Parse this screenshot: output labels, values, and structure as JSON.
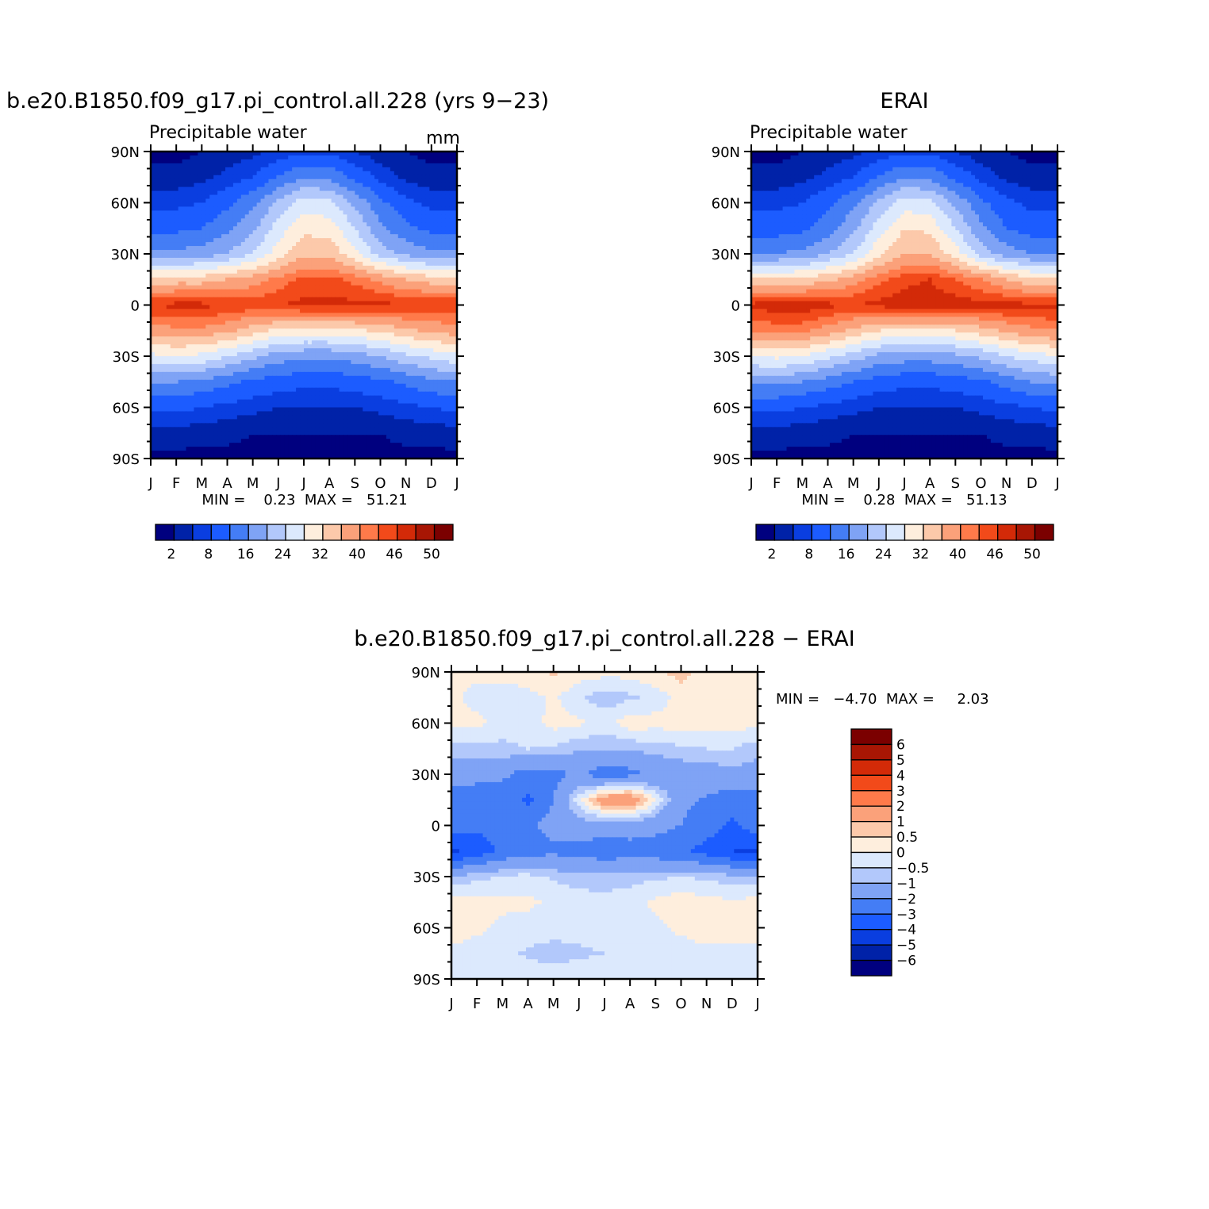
{
  "panels": [
    {
      "title": "b.e20.B1850.f09_g17.pi_control.all.228 (yrs 9−23)",
      "subtitle": "Precipitable water",
      "units": "mm",
      "stats_text": "MIN =    0.23  MAX =   51.21",
      "colorbar_ticks": [
        "2",
        "8",
        "16",
        "24",
        "32",
        "40",
        "46",
        "50"
      ]
    },
    {
      "title": "ERAI",
      "subtitle": "Precipitable water",
      "units": "",
      "stats_text": "MIN =    0.28  MAX =   51.13",
      "colorbar_ticks": [
        "2",
        "8",
        "16",
        "24",
        "32",
        "40",
        "46",
        "50"
      ]
    },
    {
      "title": "b.e20.B1850.f09_g17.pi_control.all.228 − ERAI",
      "subtitle": "",
      "units": "",
      "stats_text": "MIN =   −4.70  MAX =     2.03",
      "colorbar_ticks": [
        "6",
        "5",
        "4",
        "3",
        "2",
        "1",
        "0.5",
        "0",
        "−0.5",
        "−1",
        "−2",
        "−3",
        "−4",
        "−5",
        "−6"
      ]
    }
  ],
  "lat_tick_labels": [
    "90N",
    "60N",
    "30N",
    "0",
    "30S",
    "60S",
    "90S"
  ],
  "month_tick_labels": [
    "J",
    "F",
    "M",
    "A",
    "M",
    "J",
    "J",
    "A",
    "S",
    "O",
    "N",
    "D",
    "J"
  ],
  "colors": {
    "field_palette": [
      "#00007f",
      "#0022a8",
      "#0a3ee0",
      "#1c5cff",
      "#447df5",
      "#7fa3f5",
      "#b2c8fb",
      "#dce9fd",
      "#feeedd",
      "#fcc9aa",
      "#fba17a",
      "#ff7a4a",
      "#f24a1a",
      "#d32a08",
      "#a81604",
      "#7b0000"
    ],
    "diff_palette": [
      "#7b0000",
      "#a81604",
      "#d32a08",
      "#f24a1a",
      "#ff7a4a",
      "#fba17a",
      "#fcc9aa",
      "#feeedd",
      "#dce9fd",
      "#b2c8fb",
      "#7fa3f5",
      "#447df5",
      "#1c5cff",
      "#0a3ee0",
      "#0022a8",
      "#00007f"
    ]
  },
  "chart_data": [
    {
      "type": "heatmap",
      "title": "b.e20.B1850.f09_g17.pi_control.all.228 (yrs 9−23)",
      "subtitle": "Precipitable water",
      "units": "mm",
      "x_labels": [
        "J",
        "F",
        "M",
        "A",
        "M",
        "J",
        "J",
        "A",
        "S",
        "O",
        "N",
        "D",
        "J"
      ],
      "y_labels": [
        "90N",
        "60N",
        "30N",
        "0",
        "30S",
        "60S",
        "90S"
      ],
      "y_values": [
        90,
        60,
        30,
        0,
        -30,
        -60,
        -90
      ],
      "contour_levels": [
        2,
        5,
        8,
        12,
        16,
        20,
        24,
        28,
        32,
        36,
        40,
        43,
        46,
        48,
        50
      ],
      "min": 0.23,
      "max": 51.21,
      "grid_lat": [
        90,
        75,
        60,
        45,
        30,
        15,
        0,
        -15,
        -30,
        -45,
        -60,
        -75,
        -90
      ],
      "values_by_lat": [
        [
          1,
          1,
          2,
          3,
          4,
          6,
          7,
          7,
          5,
          3,
          2,
          1,
          1
        ],
        [
          3,
          3,
          4,
          6,
          8,
          12,
          16,
          15,
          11,
          7,
          4,
          3,
          3
        ],
        [
          7,
          7,
          8,
          11,
          15,
          21,
          26,
          25,
          19,
          13,
          9,
          7,
          7
        ],
        [
          11,
          11,
          12,
          15,
          19,
          26,
          31,
          30,
          24,
          17,
          13,
          11,
          11
        ],
        [
          17,
          17,
          18,
          20,
          24,
          30,
          35,
          35,
          29,
          22,
          19,
          17,
          17
        ],
        [
          33,
          34,
          34,
          36,
          38,
          41,
          44,
          44,
          42,
          39,
          36,
          34,
          33
        ],
        [
          46,
          47,
          47,
          46,
          45,
          46,
          47,
          47,
          47,
          47,
          46,
          46,
          46
        ],
        [
          38,
          39,
          39,
          37,
          34,
          31,
          30,
          30,
          31,
          33,
          35,
          37,
          38
        ],
        [
          27,
          28,
          27,
          24,
          21,
          18,
          17,
          17,
          18,
          20,
          23,
          25,
          27
        ],
        [
          16,
          16,
          15,
          13,
          11,
          10,
          9,
          9,
          10,
          11,
          13,
          15,
          16
        ],
        [
          9,
          9,
          8,
          7,
          6,
          5,
          5,
          5,
          5,
          6,
          7,
          8,
          9
        ],
        [
          4,
          4,
          3,
          3,
          2,
          2,
          2,
          2,
          2,
          2,
          3,
          3,
          4
        ],
        [
          1,
          1,
          1,
          1,
          1,
          1,
          1,
          1,
          1,
          1,
          1,
          1,
          1
        ]
      ],
      "colorbar_ticks": [
        "2",
        "8",
        "16",
        "24",
        "32",
        "40",
        "46",
        "50"
      ]
    },
    {
      "type": "heatmap",
      "title": "ERAI",
      "subtitle": "Precipitable water",
      "x_labels": [
        "J",
        "F",
        "M",
        "A",
        "M",
        "J",
        "J",
        "A",
        "S",
        "O",
        "N",
        "D",
        "J"
      ],
      "y_labels": [
        "90N",
        "60N",
        "30N",
        "0",
        "30S",
        "60S",
        "90S"
      ],
      "y_values": [
        90,
        60,
        30,
        0,
        -30,
        -60,
        -90
      ],
      "contour_levels": [
        2,
        5,
        8,
        12,
        16,
        20,
        24,
        28,
        32,
        36,
        40,
        43,
        46,
        48,
        50
      ],
      "min": 0.28,
      "max": 51.13,
      "grid_lat": [
        90,
        75,
        60,
        45,
        30,
        15,
        0,
        -15,
        -30,
        -45,
        -60,
        -75,
        -90
      ],
      "values_by_lat": [
        [
          1,
          1,
          2,
          3,
          4,
          6,
          7,
          7,
          5,
          3,
          2,
          1,
          1
        ],
        [
          3,
          3,
          4,
          6,
          8,
          12,
          16,
          15,
          11,
          7,
          4,
          3,
          3
        ],
        [
          7,
          7,
          8,
          11,
          15,
          21,
          26,
          25,
          19,
          13,
          9,
          7,
          7
        ],
        [
          10,
          10,
          11,
          14,
          19,
          26,
          32,
          31,
          24,
          17,
          12,
          10,
          10
        ],
        [
          16,
          16,
          17,
          20,
          24,
          31,
          36,
          36,
          30,
          22,
          18,
          16,
          16
        ],
        [
          32,
          33,
          33,
          35,
          38,
          42,
          45,
          46,
          43,
          40,
          36,
          33,
          32
        ],
        [
          47,
          48,
          48,
          47,
          46,
          47,
          48,
          48,
          48,
          47,
          47,
          47,
          47
        ],
        [
          40,
          41,
          41,
          38,
          35,
          32,
          31,
          31,
          32,
          34,
          37,
          39,
          40
        ],
        [
          28,
          29,
          28,
          25,
          22,
          19,
          18,
          18,
          19,
          21,
          24,
          26,
          28
        ],
        [
          17,
          17,
          16,
          14,
          12,
          10,
          9,
          9,
          10,
          11,
          14,
          16,
          17
        ],
        [
          9,
          9,
          8,
          7,
          6,
          5,
          5,
          5,
          5,
          6,
          7,
          8,
          9
        ],
        [
          4,
          4,
          3,
          3,
          2,
          2,
          2,
          2,
          2,
          2,
          3,
          3,
          4
        ],
        [
          1,
          1,
          1,
          1,
          1,
          1,
          1,
          1,
          1,
          1,
          1,
          1,
          1
        ]
      ],
      "colorbar_ticks": [
        "2",
        "8",
        "16",
        "24",
        "32",
        "40",
        "46",
        "50"
      ]
    },
    {
      "type": "heatmap",
      "title": "b.e20.B1850.f09_g17.pi_control.all.228 − ERAI",
      "x_labels": [
        "J",
        "F",
        "M",
        "A",
        "M",
        "J",
        "J",
        "A",
        "S",
        "O",
        "N",
        "D",
        "J"
      ],
      "y_labels": [
        "90N",
        "60N",
        "30N",
        "0",
        "30S",
        "60S",
        "90S"
      ],
      "y_values": [
        90,
        60,
        30,
        0,
        -30,
        -60,
        -90
      ],
      "contour_levels": [
        -6,
        -5,
        -4,
        -3,
        -2,
        -1,
        -0.5,
        0,
        0.5,
        1,
        2,
        3,
        4,
        5,
        6
      ],
      "min": -4.7,
      "max": 2.03,
      "grid_lat": [
        90,
        75,
        60,
        45,
        30,
        15,
        0,
        -15,
        -30,
        -45,
        -60,
        -75,
        -90
      ],
      "values_by_lat": [
        [
          0.2,
          0.2,
          0.2,
          0.3,
          0.6,
          0.3,
          0.2,
          0.2,
          0.4,
          0.7,
          0.3,
          0.2,
          0.2
        ],
        [
          0.2,
          -0.3,
          -0.3,
          -0.2,
          0.1,
          -0.4,
          -0.8,
          -0.6,
          -0.3,
          0.2,
          0.2,
          0.2,
          0.2
        ],
        [
          0.2,
          0.2,
          -0.3,
          -0.3,
          0.2,
          0.1,
          -0.2,
          0.3,
          0.2,
          0.2,
          0.2,
          0.2,
          0.2
        ],
        [
          -0.8,
          -0.7,
          -0.6,
          -0.5,
          -0.6,
          -0.9,
          -1.0,
          -0.9,
          -0.7,
          -0.6,
          -0.5,
          -0.5,
          -0.8
        ],
        [
          -1.3,
          -1.6,
          -1.8,
          -2.4,
          -2.3,
          -1.8,
          -2.6,
          -2.3,
          -1.8,
          -1.5,
          -1.4,
          -1.2,
          -1.3
        ],
        [
          -2.6,
          -2.7,
          -2.5,
          -3.2,
          -2.0,
          -0.2,
          1.6,
          1.8,
          0.0,
          -1.8,
          -2.1,
          -2.6,
          -2.6
        ],
        [
          -2.4,
          -2.8,
          -2.6,
          -2.2,
          -1.6,
          -1.3,
          -1.5,
          -1.4,
          -1.6,
          -2.0,
          -2.5,
          -3.2,
          -2.4
        ],
        [
          -4.2,
          -3.6,
          -2.8,
          -2.4,
          -2.2,
          -2.4,
          -2.6,
          -2.5,
          -2.6,
          -2.8,
          -3.4,
          -4.0,
          -4.2
        ],
        [
          -0.9,
          -0.7,
          -0.4,
          -0.3,
          -0.6,
          -0.8,
          -0.8,
          -0.7,
          -0.6,
          -0.5,
          -0.6,
          -0.8,
          -0.9
        ],
        [
          0.2,
          0.3,
          0.1,
          0.1,
          -0.1,
          -0.2,
          -0.3,
          -0.2,
          0.1,
          0.3,
          0.2,
          0.1,
          0.2
        ],
        [
          0.2,
          0.1,
          -0.1,
          -0.2,
          -0.3,
          -0.3,
          -0.2,
          -0.2,
          -0.1,
          0.1,
          0.2,
          0.2,
          0.2
        ],
        [
          -0.1,
          -0.2,
          -0.3,
          -0.6,
          -0.7,
          -0.6,
          -0.5,
          -0.3,
          -0.2,
          -0.2,
          -0.1,
          -0.1,
          -0.1
        ],
        [
          -0.2,
          -0.2,
          -0.2,
          -0.2,
          -0.2,
          -0.2,
          -0.2,
          -0.2,
          -0.2,
          -0.2,
          -0.2,
          -0.2,
          -0.2
        ]
      ],
      "colorbar_ticks": [
        "6",
        "5",
        "4",
        "3",
        "2",
        "1",
        "0.5",
        "0",
        "−0.5",
        "−1",
        "−2",
        "−3",
        "−4",
        "−5",
        "−6"
      ]
    }
  ]
}
